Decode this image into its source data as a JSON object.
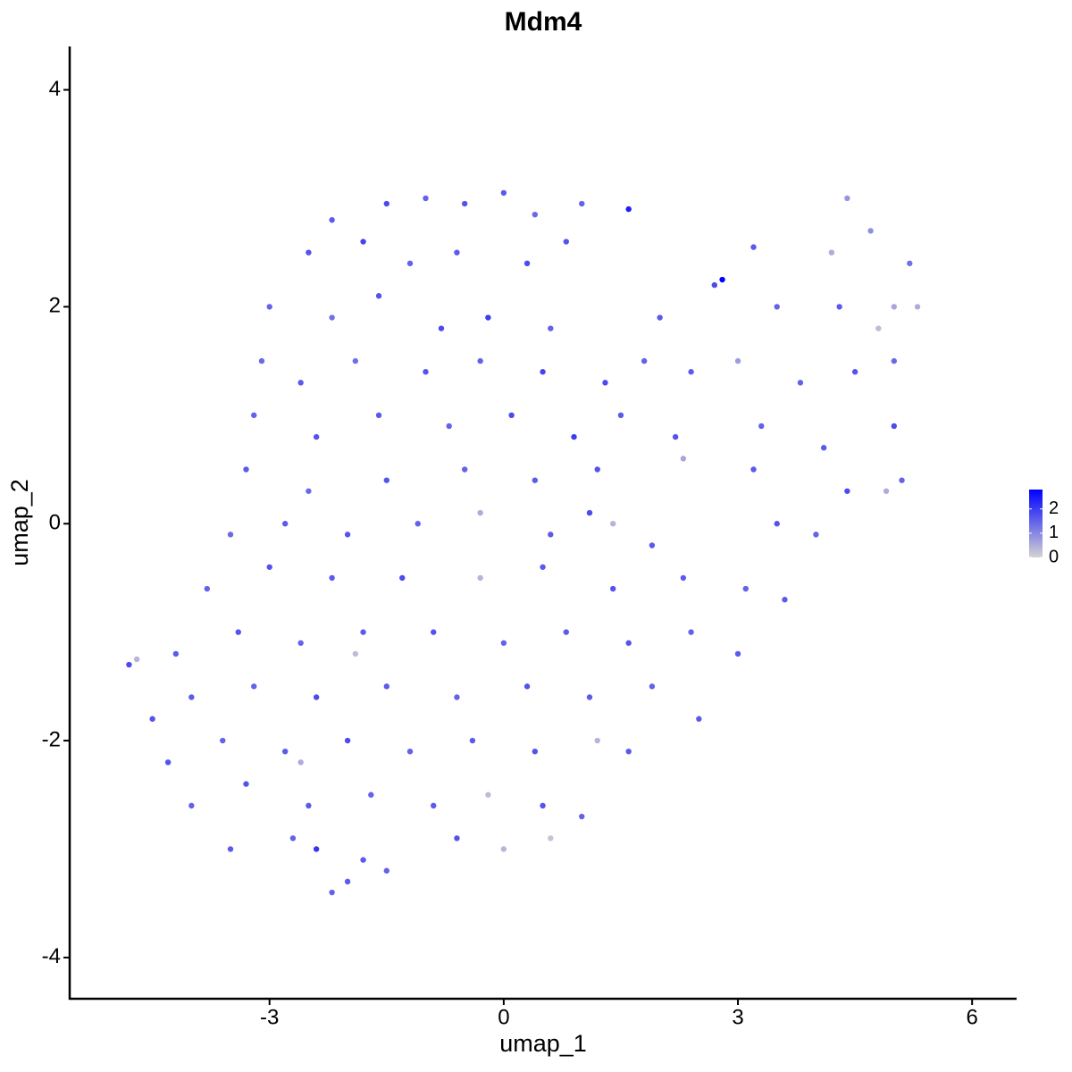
{
  "chart_data": {
    "type": "scatter",
    "title": "Mdm4",
    "xlabel": "umap_1",
    "ylabel": "umap_2",
    "xlim": [
      -5.56,
      6.57
    ],
    "ylim": [
      -4.38,
      4.4
    ],
    "xticks": [
      -3,
      0,
      3,
      6
    ],
    "yticks": [
      -4,
      -2,
      0,
      2,
      4
    ],
    "color_low": "#d3d3d3",
    "color_high": "#0000ff",
    "clim": [
      0,
      2.8
    ],
    "cticks": [
      0,
      1,
      2
    ],
    "x": [
      -2.2,
      -1.5,
      -1.0,
      -0.5,
      0,
      0.4,
      1.0,
      1.6,
      -2.5,
      -1.8,
      -1.2,
      -0.6,
      0.3,
      0.8,
      3.2,
      4.4,
      4.7,
      5.2,
      4.2,
      -3.0,
      -2.2,
      -1.6,
      -0.8,
      -0.2,
      0.6,
      2.0,
      2.7,
      2.8,
      3.5,
      4.3,
      5.0,
      5.3,
      4.8,
      -3.1,
      -2.6,
      -1.9,
      -1.0,
      -0.3,
      0.5,
      1.3,
      1.8,
      2.4,
      3.0,
      3.8,
      4.5,
      5.0,
      -3.2,
      -2.4,
      -1.6,
      -0.7,
      0.1,
      0.9,
      1.5,
      2.2,
      3.3,
      4.1,
      5.0,
      2.3,
      -3.3,
      -2.5,
      -1.5,
      -0.5,
      0.4,
      1.2,
      3.2,
      4.4,
      5.1,
      4.9,
      -3.5,
      -2.8,
      -2.0,
      -1.1,
      -0.3,
      0.6,
      1.1,
      1.9,
      3.5,
      4.0,
      1.4,
      -3.8,
      -3.0,
      -2.2,
      -1.3,
      -0.3,
      0.5,
      1.4,
      2.3,
      3.1,
      3.6,
      -4.2,
      -3.4,
      -2.6,
      -1.8,
      -0.9,
      0.0,
      0.8,
      1.6,
      2.4,
      3.0,
      -4.7,
      -4.8,
      -1.9,
      -4.0,
      -3.2,
      -2.4,
      -1.5,
      -0.6,
      0.3,
      1.1,
      1.9,
      2.5,
      -4.5,
      -4.3,
      -3.6,
      -2.8,
      -2.0,
      -1.2,
      -0.4,
      0.4,
      1.2,
      1.6,
      -2.6,
      -4.0,
      -3.3,
      -2.5,
      -1.7,
      -0.9,
      -0.2,
      0.5,
      1.0,
      0.6,
      -3.5,
      -2.7,
      -2.4,
      -1.8,
      -1.5,
      -0.6,
      0.0,
      -2.2,
      -2.0
    ],
    "y": [
      2.8,
      2.95,
      3.0,
      2.95,
      3.05,
      2.85,
      2.95,
      2.9,
      2.5,
      2.6,
      2.4,
      2.5,
      2.4,
      2.6,
      2.55,
      3.0,
      2.7,
      2.4,
      2.5,
      2.0,
      1.9,
      2.1,
      1.8,
      1.9,
      1.8,
      1.9,
      2.2,
      2.25,
      2.0,
      2.0,
      2.0,
      2.0,
      1.8,
      1.5,
      1.3,
      1.5,
      1.4,
      1.5,
      1.4,
      1.3,
      1.5,
      1.4,
      1.5,
      1.3,
      1.4,
      1.5,
      1.0,
      0.8,
      1.0,
      0.9,
      1.0,
      0.8,
      1.0,
      0.8,
      0.9,
      0.7,
      0.9,
      0.6,
      0.5,
      0.3,
      0.4,
      0.5,
      0.4,
      0.5,
      0.5,
      0.3,
      0.4,
      0.3,
      -0.1,
      0.0,
      -0.1,
      0.0,
      0.1,
      -0.1,
      0.1,
      -0.2,
      0.0,
      -0.1,
      0.0,
      -0.6,
      -0.4,
      -0.5,
      -0.5,
      -0.5,
      -0.4,
      -0.6,
      -0.5,
      -0.6,
      -0.7,
      -1.2,
      -1.0,
      -1.1,
      -1.0,
      -1.0,
      -1.1,
      -1.0,
      -1.1,
      -1.0,
      -1.2,
      -1.25,
      -1.3,
      -1.2,
      -1.6,
      -1.5,
      -1.6,
      -1.5,
      -1.6,
      -1.5,
      -1.6,
      -1.5,
      -1.8,
      -1.8,
      -2.2,
      -2.0,
      -2.1,
      -2.0,
      -2.1,
      -2.0,
      -2.1,
      -2.0,
      -2.1,
      -2.2,
      -2.6,
      -2.4,
      -2.6,
      -2.5,
      -2.6,
      -2.5,
      -2.6,
      -2.7,
      -2.9,
      -3.0,
      -2.9,
      -3.0,
      -3.1,
      -3.2,
      -2.9,
      -3.0,
      -3.4,
      -3.3
    ],
    "values": [
      1.6,
      1.8,
      1.5,
      1.7,
      1.6,
      1.4,
      1.5,
      2.4,
      1.7,
      1.9,
      1.5,
      1.6,
      1.8,
      1.7,
      1.6,
      0.8,
      0.9,
      1.3,
      0.5,
      1.5,
      1.3,
      1.7,
      1.8,
      2.0,
      1.5,
      1.6,
      1.8,
      2.8,
      1.5,
      1.6,
      0.6,
      0.5,
      0.3,
      1.4,
      1.6,
      1.3,
      1.7,
      1.5,
      1.9,
      1.8,
      1.5,
      1.6,
      0.7,
      1.5,
      1.7,
      1.4,
      1.5,
      1.7,
      1.6,
      1.5,
      1.8,
      2.0,
      1.6,
      1.7,
      1.5,
      1.6,
      1.8,
      0.6,
      1.6,
      1.4,
      1.7,
      1.5,
      1.6,
      1.7,
      1.6,
      1.8,
      1.5,
      0.5,
      1.4,
      1.6,
      1.7,
      1.5,
      0.5,
      1.6,
      1.8,
      1.6,
      1.7,
      1.5,
      0.4,
      1.5,
      1.7,
      1.6,
      1.8,
      0.4,
      1.6,
      1.7,
      1.6,
      1.5,
      1.6,
      1.6,
      1.7,
      1.5,
      1.6,
      1.7,
      1.5,
      1.6,
      1.7,
      1.5,
      1.6,
      0.4,
      1.8,
      0.3,
      1.6,
      1.5,
      1.8,
      1.6,
      1.5,
      1.7,
      1.6,
      1.5,
      1.6,
      1.7,
      1.7,
      1.5,
      1.6,
      1.8,
      1.5,
      1.6,
      1.7,
      0.4,
      1.6,
      0.5,
      1.5,
      1.7,
      1.6,
      1.5,
      1.6,
      0.3,
      1.7,
      1.5,
      0.2,
      1.6,
      1.5,
      2.1,
      1.6,
      1.5,
      1.7,
      0.4,
      1.5,
      1.6
    ]
  }
}
